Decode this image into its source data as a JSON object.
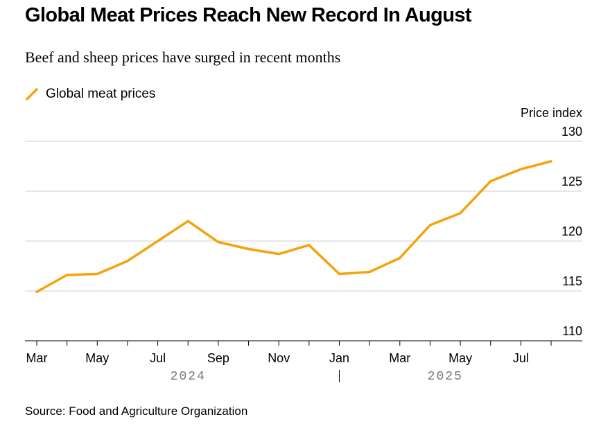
{
  "title": "Global Meat Prices Reach New Record In August",
  "subtitle": "Beef and sheep prices have surged in recent months",
  "source": "Source: Food and Agriculture Organization",
  "colors": {
    "line": "#f5a20b",
    "grid": "#cccccc",
    "axis": "#000000",
    "year": "#777777"
  },
  "chart_data": {
    "type": "line",
    "title": "Global Meat Prices Reach New Record In August",
    "ylabel": "Price index",
    "ylim": [
      110,
      130
    ],
    "yticks": [
      110,
      115,
      120,
      125,
      130
    ],
    "grid": true,
    "legend": "top-left",
    "x": [
      "2024-03",
      "2024-04",
      "2024-05",
      "2024-06",
      "2024-07",
      "2024-08",
      "2024-09",
      "2024-10",
      "2024-11",
      "2024-12",
      "2025-01",
      "2025-02",
      "2025-03",
      "2025-04",
      "2025-05",
      "2025-06",
      "2025-07",
      "2025-08"
    ],
    "xtick_labels": [
      "Mar",
      "May",
      "Jul",
      "Sep",
      "Nov",
      "Jan",
      "Mar",
      "May",
      "Jul"
    ],
    "xtick_label_positions": [
      0,
      2,
      4,
      6,
      8,
      10,
      12,
      14,
      16
    ],
    "year_labels": [
      "2024",
      "2025"
    ],
    "series": [
      {
        "name": "Global meat prices",
        "values": [
          114.9,
          116.6,
          116.7,
          118.0,
          120.0,
          122.0,
          119.9,
          119.2,
          118.7,
          119.6,
          116.7,
          116.9,
          118.3,
          121.6,
          122.8,
          126.0,
          127.2,
          128.0
        ]
      }
    ]
  }
}
